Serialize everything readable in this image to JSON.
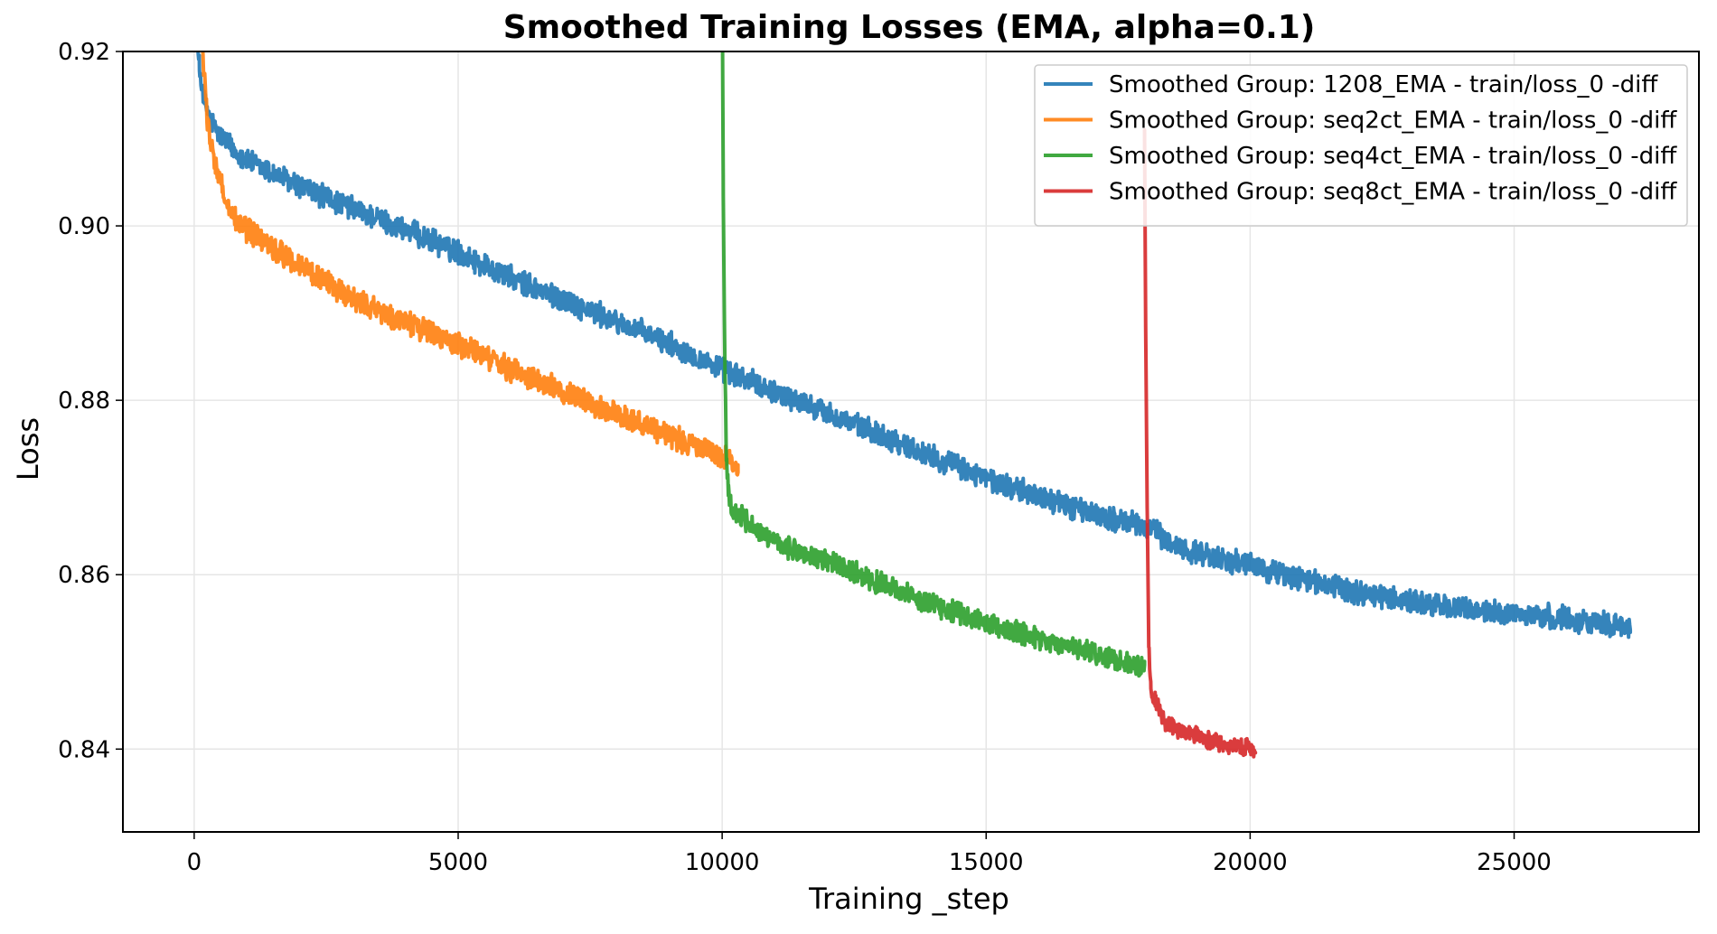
{
  "chart_data": {
    "type": "line",
    "title": "Smoothed Training Losses (EMA, alpha=0.1)",
    "xlabel": "Training _step",
    "ylabel": "Loss",
    "xlim": [
      -1350,
      28500
    ],
    "ylim": [
      0.8305,
      0.92
    ],
    "xticks": [
      0,
      5000,
      10000,
      15000,
      20000,
      25000
    ],
    "xtick_labels": [
      "0",
      "5000",
      "10000",
      "15000",
      "20000",
      "25000"
    ],
    "yticks": [
      0.84,
      0.86,
      0.88,
      0.9,
      0.92
    ],
    "ytick_labels": [
      "0.84",
      "0.86",
      "0.88",
      "0.90",
      "0.92"
    ],
    "grid": true,
    "legend_position": "top-right",
    "series": [
      {
        "name": "Smoothed Group: 1208_EMA - train/loss_0 -diff",
        "color": "#1f77b4",
        "x": [
          0,
          100,
          200,
          400,
          700,
          1000,
          1500,
          2000,
          3000,
          4000,
          5000,
          6000,
          7000,
          8000,
          9000,
          10000,
          11000,
          12000,
          13000,
          14000,
          15000,
          16000,
          17000,
          18000,
          18100,
          18500,
          19000,
          20000,
          21000,
          22000,
          23000,
          24000,
          25000,
          26000,
          27200
        ],
        "y": [
          0.925,
          0.918,
          0.914,
          0.911,
          0.909,
          0.9075,
          0.906,
          0.9045,
          0.902,
          0.8995,
          0.897,
          0.894,
          0.8915,
          0.889,
          0.8865,
          0.8835,
          0.881,
          0.8785,
          0.876,
          0.8735,
          0.871,
          0.869,
          0.867,
          0.8655,
          0.8655,
          0.8635,
          0.8625,
          0.861,
          0.8595,
          0.858,
          0.857,
          0.856,
          0.8555,
          0.855,
          0.854
        ],
        "noise": 0.0012
      },
      {
        "name": "Smoothed Group: seq2ct_EMA - train/loss_0 -diff",
        "color": "#ff7f0e",
        "x": [
          50,
          150,
          250,
          400,
          600,
          800,
          1000,
          1500,
          2000,
          3000,
          4000,
          5000,
          6000,
          7000,
          8000,
          9000,
          10000,
          10300
        ],
        "y": [
          0.935,
          0.921,
          0.912,
          0.907,
          0.903,
          0.9005,
          0.8995,
          0.8975,
          0.8955,
          0.8915,
          0.889,
          0.8865,
          0.8835,
          0.881,
          0.8785,
          0.876,
          0.8735,
          0.8725
        ],
        "noise": 0.0012
      },
      {
        "name": "Smoothed Group: seq4ct_EMA - train/loss_0 -diff",
        "color": "#2ca02c",
        "x": [
          10000,
          10020,
          10050,
          10080,
          10120,
          10200,
          10400,
          10700,
          11000,
          12000,
          13000,
          14000,
          15000,
          16000,
          17000,
          18000
        ],
        "y": [
          0.93,
          0.905,
          0.885,
          0.874,
          0.8695,
          0.867,
          0.8665,
          0.865,
          0.8635,
          0.8615,
          0.859,
          0.8565,
          0.8545,
          0.8525,
          0.851,
          0.8495
        ],
        "noise": 0.0011
      },
      {
        "name": "Smoothed Group: seq8ct_EMA - train/loss_0 -diff",
        "color": "#d62728",
        "x": [
          18000,
          18020,
          18050,
          18080,
          18120,
          18200,
          18400,
          18700,
          19000,
          19500,
          20000,
          20100
        ],
        "y": [
          0.911,
          0.89,
          0.868,
          0.852,
          0.847,
          0.8455,
          0.843,
          0.842,
          0.8415,
          0.8405,
          0.84,
          0.8395
        ],
        "noise": 0.0009
      }
    ]
  }
}
